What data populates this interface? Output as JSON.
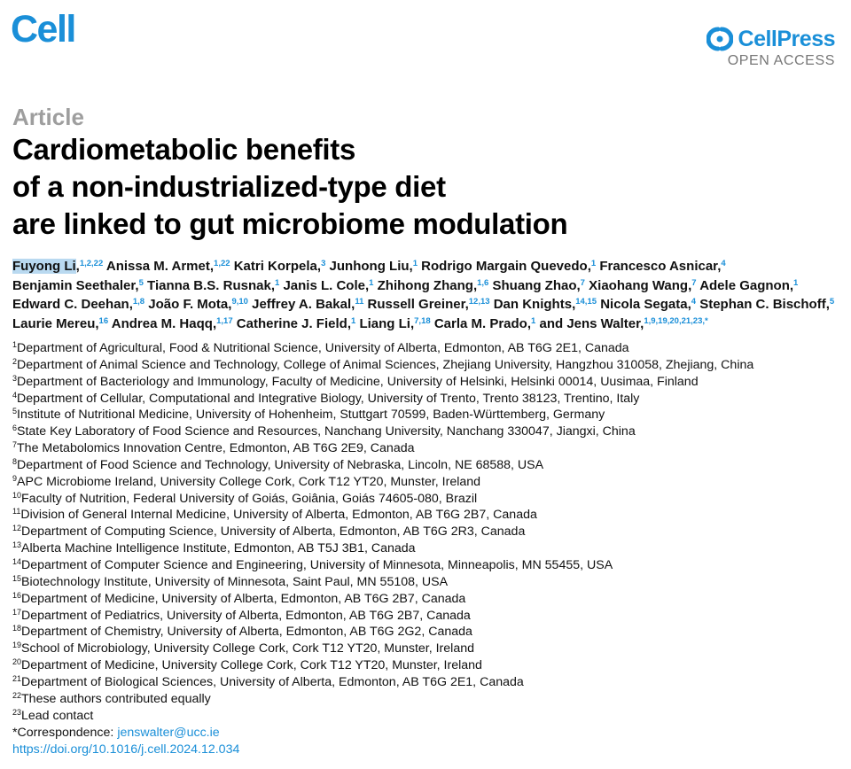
{
  "header": {
    "journal": "Cell",
    "publisher": "CellPress",
    "access": "OPEN ACCESS"
  },
  "article": {
    "type": "Article",
    "title_lines": [
      "Cardiometabolic benefits",
      "of a non-industrialized-type diet",
      "are linked to gut microbiome modulation"
    ]
  },
  "authors": [
    {
      "name": "Fuyong Li",
      "refs": "1,2,22",
      "highlight": true
    },
    {
      "name": "Anissa M. Armet",
      "refs": "1,22"
    },
    {
      "name": "Katri Korpela",
      "refs": "3"
    },
    {
      "name": "Junhong Liu",
      "refs": "1"
    },
    {
      "name": "Rodrigo Margain Quevedo",
      "refs": "1"
    },
    {
      "name": "Francesco Asnicar",
      "refs": "4"
    },
    {
      "name": "Benjamin Seethaler",
      "refs": "5"
    },
    {
      "name": "Tianna B.S. Rusnak",
      "refs": "1"
    },
    {
      "name": "Janis L. Cole",
      "refs": "1"
    },
    {
      "name": "Zhihong Zhang",
      "refs": "1,6"
    },
    {
      "name": "Shuang Zhao",
      "refs": "7"
    },
    {
      "name": "Xiaohang Wang",
      "refs": "7"
    },
    {
      "name": "Adele Gagnon",
      "refs": "1"
    },
    {
      "name": "Edward C. Deehan",
      "refs": "1,8"
    },
    {
      "name": "João F. Mota",
      "refs": "9,10"
    },
    {
      "name": "Jeffrey A. Bakal",
      "refs": "11"
    },
    {
      "name": "Russell Greiner",
      "refs": "12,13"
    },
    {
      "name": "Dan Knights",
      "refs": "14,15"
    },
    {
      "name": "Nicola Segata",
      "refs": "4"
    },
    {
      "name": "Stephan C. Bischoff",
      "refs": "5"
    },
    {
      "name": "Laurie Mereu",
      "refs": "16"
    },
    {
      "name": "Andrea M. Haqq",
      "refs": "1,17"
    },
    {
      "name": "Catherine J. Field",
      "refs": "1"
    },
    {
      "name": "Liang Li",
      "refs": "7,18"
    },
    {
      "name": "Carla M. Prado",
      "refs": "1"
    },
    {
      "name": "Jens Walter",
      "refs": "1,9,19,20,21,23,*",
      "prefix": "and "
    }
  ],
  "affiliations": [
    {
      "num": "1",
      "text": "Department of Agricultural, Food & Nutritional Science, University of Alberta, Edmonton, AB T6G 2E1, Canada"
    },
    {
      "num": "2",
      "text": "Department of Animal Science and Technology, College of Animal Sciences, Zhejiang University, Hangzhou 310058, Zhejiang, China"
    },
    {
      "num": "3",
      "text": "Department of Bacteriology and Immunology, Faculty of Medicine, University of Helsinki, Helsinki 00014, Uusimaa, Finland"
    },
    {
      "num": "4",
      "text": "Department of Cellular, Computational and Integrative Biology, University of Trento, Trento 38123, Trentino, Italy"
    },
    {
      "num": "5",
      "text": "Institute of Nutritional Medicine, University of Hohenheim, Stuttgart 70599, Baden-Württemberg, Germany"
    },
    {
      "num": "6",
      "text": "State Key Laboratory of Food Science and Resources, Nanchang University, Nanchang 330047, Jiangxi, China"
    },
    {
      "num": "7",
      "text": "The Metabolomics Innovation Centre, Edmonton, AB T6G 2E9, Canada"
    },
    {
      "num": "8",
      "text": "Department of Food Science and Technology, University of Nebraska, Lincoln, NE 68588, USA"
    },
    {
      "num": "9",
      "text": "APC Microbiome Ireland, University College Cork, Cork T12 YT20, Munster, Ireland"
    },
    {
      "num": "10",
      "text": "Faculty of Nutrition, Federal University of Goiás, Goiânia, Goiás 74605-080, Brazil"
    },
    {
      "num": "11",
      "text": "Division of General Internal Medicine, University of Alberta, Edmonton, AB T6G 2B7, Canada"
    },
    {
      "num": "12",
      "text": "Department of Computing Science, University of Alberta, Edmonton, AB T6G 2R3, Canada"
    },
    {
      "num": "13",
      "text": "Alberta Machine Intelligence Institute, Edmonton, AB T5J 3B1, Canada"
    },
    {
      "num": "14",
      "text": "Department of Computer Science and Engineering, University of Minnesota, Minneapolis, MN 55455, USA"
    },
    {
      "num": "15",
      "text": "Biotechnology Institute, University of Minnesota, Saint Paul, MN 55108, USA"
    },
    {
      "num": "16",
      "text": "Department of Medicine, University of Alberta, Edmonton, AB T6G 2B7, Canada"
    },
    {
      "num": "17",
      "text": "Department of Pediatrics, University of Alberta, Edmonton, AB T6G 2B7, Canada"
    },
    {
      "num": "18",
      "text": "Department of Chemistry, University of Alberta, Edmonton, AB T6G 2G2, Canada"
    },
    {
      "num": "19",
      "text": "School of Microbiology, University College Cork, Cork T12 YT20, Munster, Ireland"
    },
    {
      "num": "20",
      "text": "Department of Medicine, University College Cork, Cork T12 YT20, Munster, Ireland"
    },
    {
      "num": "21",
      "text": "Department of Biological Sciences, University of Alberta, Edmonton, AB T6G 2E1, Canada"
    },
    {
      "num": "22",
      "text": "These authors contributed equally"
    },
    {
      "num": "23",
      "text": "Lead contact"
    }
  ],
  "correspondence": {
    "label": "*Correspondence:",
    "email": "jenswalter@ucc.ie",
    "doi": "https://doi.org/10.1016/j.cell.2024.12.034"
  }
}
